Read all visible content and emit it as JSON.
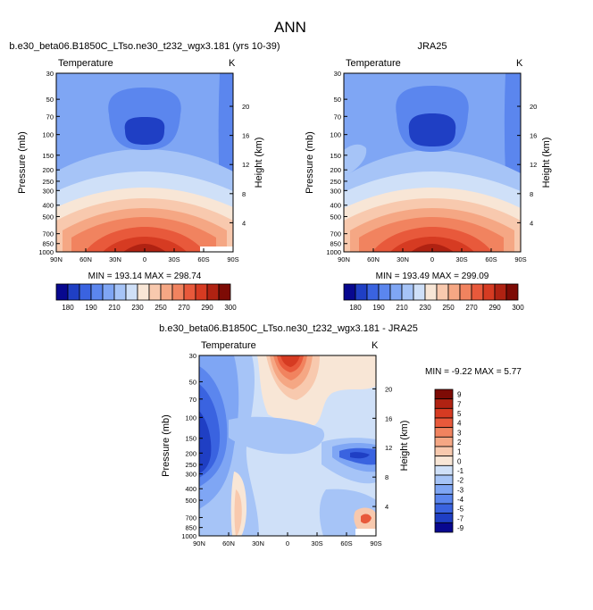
{
  "figure_title": "ANN",
  "chart_data": [
    {
      "type": "heatmap",
      "title": "b.e30_beta06.B1850C_LTso.ne30_t232_wgx3.181 (yrs 10-39)",
      "left_label": "Temperature",
      "right_label": "K",
      "xlabel": "",
      "ylabel": "Pressure (mb)",
      "y2label": "Height (km)",
      "x_ticks": [
        "90N",
        "60N",
        "30N",
        "0",
        "30S",
        "60S",
        "90S"
      ],
      "y_ticks": [
        "30",
        "50",
        "70",
        "100",
        "150",
        "200",
        "250",
        "300",
        "400",
        "500",
        "700",
        "850",
        "1000"
      ],
      "y2_ticks": [
        "20",
        "16",
        "12",
        "8",
        "4"
      ],
      "stats": "MIN = 193.14   MAX = 298.74",
      "min": 193.14,
      "max": 298.74,
      "colorbar_labels": [
        "180",
        "190",
        "210",
        "230",
        "250",
        "270",
        "290",
        "300"
      ]
    },
    {
      "type": "heatmap",
      "title": "JRA25",
      "left_label": "Temperature",
      "right_label": "K",
      "xlabel": "",
      "ylabel": "Pressure (mb)",
      "y2label": "Height (km)",
      "x_ticks": [
        "90N",
        "60N",
        "30N",
        "0",
        "30S",
        "60S",
        "90S"
      ],
      "y_ticks": [
        "30",
        "50",
        "70",
        "100",
        "150",
        "200",
        "250",
        "300",
        "400",
        "500",
        "700",
        "850",
        "1000"
      ],
      "y2_ticks": [
        "20",
        "16",
        "12",
        "8",
        "4"
      ],
      "stats": "MIN = 193.49   MAX = 299.09",
      "min": 193.49,
      "max": 299.09,
      "colorbar_labels": [
        "180",
        "190",
        "210",
        "230",
        "250",
        "270",
        "290",
        "300"
      ]
    },
    {
      "type": "heatmap",
      "title": "b.e30_beta06.B1850C_LTso.ne30_t232_wgx3.181 - JRA25",
      "left_label": "Temperature",
      "right_label": "K",
      "xlabel": "",
      "ylabel": "Pressure (mb)",
      "y2label": "Height (km)",
      "x_ticks": [
        "90N",
        "60N",
        "30N",
        "0",
        "30S",
        "60S",
        "90S"
      ],
      "y_ticks": [
        "30",
        "50",
        "70",
        "100",
        "150",
        "200",
        "250",
        "300",
        "400",
        "500",
        "700",
        "850",
        "1000"
      ],
      "y2_ticks": [
        "20",
        "16",
        "12",
        "8",
        "4"
      ],
      "stats": "MIN = -9.22   MAX =  5.77",
      "min": -9.22,
      "max": 5.77,
      "colorbar_labels": [
        "9",
        "7",
        "5",
        "4",
        "3",
        "2",
        "1",
        "0",
        "-1",
        "-2",
        "-3",
        "-4",
        "-5",
        "-7",
        "-9"
      ]
    }
  ],
  "abs_palette": [
    "#08088f",
    "#1f3fc4",
    "#3a63e0",
    "#5b86ee",
    "#7fa6f4",
    "#a6c4f7",
    "#cfe0f8",
    "#f8e6d6",
    "#f8c9ae",
    "#f5a784",
    "#f1835f",
    "#e8593b",
    "#d63b22",
    "#b02212",
    "#7d0b05"
  ],
  "diff_palette": [
    "#7d0b05",
    "#b02212",
    "#d63b22",
    "#e8593b",
    "#f1835f",
    "#f5a784",
    "#f8c9ae",
    "#f8e6d6",
    "#cfe0f8",
    "#a6c4f7",
    "#7fa6f4",
    "#5b86ee",
    "#3a63e0",
    "#1f3fc4",
    "#08088f"
  ]
}
